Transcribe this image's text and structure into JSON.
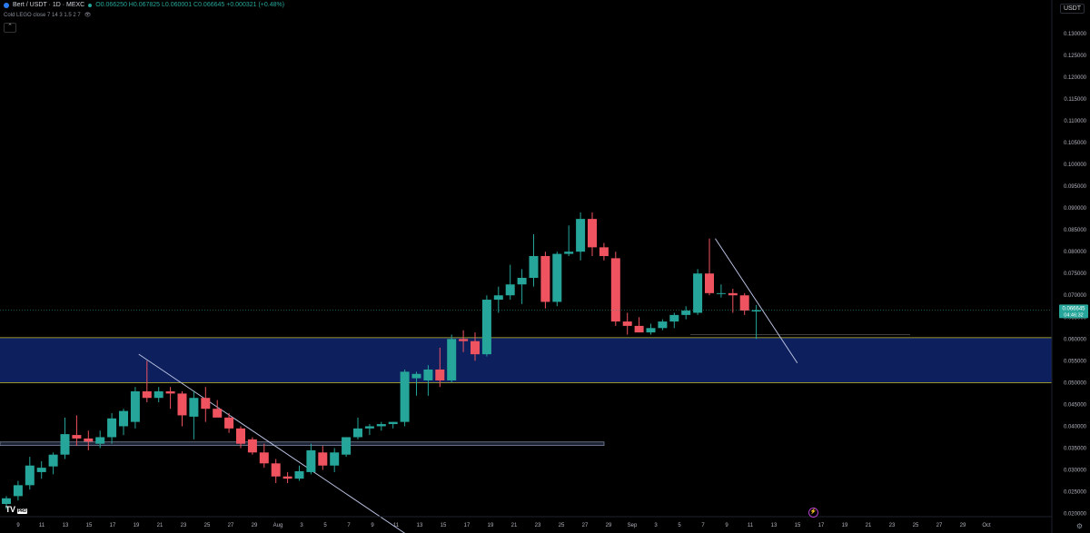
{
  "header": {
    "symbol": "Bert / USDT · 1D · MEXC",
    "ohlc": "O0.066250 H0.067825 L0.060001 C0.066645 +0.000321 (+0.48%)",
    "indicator": "Cold LEGO close 7 14 3 1.5 2 7",
    "collapse_icon": "chevron-up-icon",
    "visibility_icon": "eye-icon"
  },
  "quote_label": "USDT",
  "logo": {
    "text": "TV",
    "badge": "PRO"
  },
  "colors": {
    "up": "#26a69a",
    "down": "#ef5360",
    "zone_fill": "#0d1f5c",
    "zone_edge": "#c8c23a",
    "trendline": "#b8c0e0",
    "background": "#000000"
  },
  "chart_data": {
    "type": "candlestick",
    "symbol": "Bert / USDT",
    "interval": "1D",
    "exchange": "MEXC",
    "last_price": "0.066645",
    "countdown": "04:46:32",
    "y_axis": {
      "labels": [
        "0.130000",
        "0.125000",
        "0.120000",
        "0.115000",
        "0.110000",
        "0.105000",
        "0.100000",
        "0.095000",
        "0.090000",
        "0.085000",
        "0.080000",
        "0.075000",
        "0.070000",
        "0.065000",
        "0.060000",
        "0.055000",
        "0.050000",
        "0.045000",
        "0.040000",
        "0.035000",
        "0.030000",
        "0.025000",
        "0.020000"
      ],
      "range": [
        0.0195,
        0.1335
      ]
    },
    "x_axis": {
      "labels": [
        "9",
        "11",
        "13",
        "15",
        "17",
        "19",
        "21",
        "23",
        "25",
        "27",
        "29",
        "Aug",
        "3",
        "5",
        "7",
        "9",
        "11",
        "13",
        "15",
        "17",
        "19",
        "21",
        "23",
        "25",
        "27",
        "29",
        "Sep",
        "3",
        "5",
        "7",
        "9",
        "11",
        "13",
        "15",
        "17",
        "19",
        "21",
        "23",
        "25",
        "27",
        "29",
        "Oct"
      ]
    },
    "candles": [
      {
        "o": 0.0222,
        "h": 0.024,
        "l": 0.021,
        "c": 0.0235
      },
      {
        "o": 0.024,
        "h": 0.0275,
        "l": 0.023,
        "c": 0.0265
      },
      {
        "o": 0.0265,
        "h": 0.033,
        "l": 0.0255,
        "c": 0.031
      },
      {
        "o": 0.0295,
        "h": 0.032,
        "l": 0.028,
        "c": 0.0305
      },
      {
        "o": 0.0308,
        "h": 0.034,
        "l": 0.029,
        "c": 0.0335
      },
      {
        "o": 0.0335,
        "h": 0.042,
        "l": 0.0325,
        "c": 0.0382
      },
      {
        "o": 0.038,
        "h": 0.0425,
        "l": 0.0355,
        "c": 0.0372
      },
      {
        "o": 0.0372,
        "h": 0.039,
        "l": 0.0345,
        "c": 0.0365
      },
      {
        "o": 0.036,
        "h": 0.039,
        "l": 0.035,
        "c": 0.0375
      },
      {
        "o": 0.0375,
        "h": 0.043,
        "l": 0.036,
        "c": 0.0418
      },
      {
        "o": 0.04,
        "h": 0.044,
        "l": 0.038,
        "c": 0.0435
      },
      {
        "o": 0.041,
        "h": 0.049,
        "l": 0.0395,
        "c": 0.048
      },
      {
        "o": 0.048,
        "h": 0.055,
        "l": 0.0455,
        "c": 0.0465
      },
      {
        "o": 0.0465,
        "h": 0.049,
        "l": 0.0455,
        "c": 0.048
      },
      {
        "o": 0.048,
        "h": 0.049,
        "l": 0.044,
        "c": 0.0475
      },
      {
        "o": 0.0475,
        "h": 0.048,
        "l": 0.04,
        "c": 0.0425
      },
      {
        "o": 0.0422,
        "h": 0.048,
        "l": 0.037,
        "c": 0.0465
      },
      {
        "o": 0.0465,
        "h": 0.049,
        "l": 0.041,
        "c": 0.044
      },
      {
        "o": 0.044,
        "h": 0.046,
        "l": 0.0425,
        "c": 0.042
      },
      {
        "o": 0.042,
        "h": 0.043,
        "l": 0.0385,
        "c": 0.0395
      },
      {
        "o": 0.0395,
        "h": 0.04,
        "l": 0.035,
        "c": 0.036
      },
      {
        "o": 0.037,
        "h": 0.0375,
        "l": 0.0335,
        "c": 0.034
      },
      {
        "o": 0.034,
        "h": 0.036,
        "l": 0.0305,
        "c": 0.0315
      },
      {
        "o": 0.0315,
        "h": 0.0325,
        "l": 0.027,
        "c": 0.0285
      },
      {
        "o": 0.0285,
        "h": 0.0295,
        "l": 0.027,
        "c": 0.028
      },
      {
        "o": 0.028,
        "h": 0.031,
        "l": 0.0275,
        "c": 0.0297
      },
      {
        "o": 0.0295,
        "h": 0.036,
        "l": 0.029,
        "c": 0.0345
      },
      {
        "o": 0.034,
        "h": 0.0355,
        "l": 0.03,
        "c": 0.031
      },
      {
        "o": 0.031,
        "h": 0.035,
        "l": 0.0295,
        "c": 0.034
      },
      {
        "o": 0.0335,
        "h": 0.0375,
        "l": 0.033,
        "c": 0.0375
      },
      {
        "o": 0.0375,
        "h": 0.042,
        "l": 0.037,
        "c": 0.0395
      },
      {
        "o": 0.0395,
        "h": 0.0405,
        "l": 0.038,
        "c": 0.04
      },
      {
        "o": 0.04,
        "h": 0.041,
        "l": 0.039,
        "c": 0.0405
      },
      {
        "o": 0.0405,
        "h": 0.041,
        "l": 0.0395,
        "c": 0.041
      },
      {
        "o": 0.041,
        "h": 0.053,
        "l": 0.04,
        "c": 0.0525
      },
      {
        "o": 0.051,
        "h": 0.0525,
        "l": 0.047,
        "c": 0.052
      },
      {
        "o": 0.0505,
        "h": 0.054,
        "l": 0.047,
        "c": 0.053
      },
      {
        "o": 0.053,
        "h": 0.058,
        "l": 0.049,
        "c": 0.0505
      },
      {
        "o": 0.0505,
        "h": 0.061,
        "l": 0.05,
        "c": 0.06
      },
      {
        "o": 0.06,
        "h": 0.062,
        "l": 0.057,
        "c": 0.0595
      },
      {
        "o": 0.0595,
        "h": 0.0615,
        "l": 0.055,
        "c": 0.0565
      },
      {
        "o": 0.0565,
        "h": 0.07,
        "l": 0.056,
        "c": 0.069
      },
      {
        "o": 0.069,
        "h": 0.072,
        "l": 0.066,
        "c": 0.07
      },
      {
        "o": 0.07,
        "h": 0.077,
        "l": 0.069,
        "c": 0.0725
      },
      {
        "o": 0.0725,
        "h": 0.076,
        "l": 0.068,
        "c": 0.074
      },
      {
        "o": 0.074,
        "h": 0.084,
        "l": 0.072,
        "c": 0.079
      },
      {
        "o": 0.079,
        "h": 0.08,
        "l": 0.067,
        "c": 0.0685
      },
      {
        "o": 0.0685,
        "h": 0.08,
        "l": 0.0675,
        "c": 0.0795
      },
      {
        "o": 0.0795,
        "h": 0.086,
        "l": 0.079,
        "c": 0.08
      },
      {
        "o": 0.08,
        "h": 0.089,
        "l": 0.078,
        "c": 0.0875
      },
      {
        "o": 0.0875,
        "h": 0.089,
        "l": 0.079,
        "c": 0.081
      },
      {
        "o": 0.081,
        "h": 0.082,
        "l": 0.078,
        "c": 0.079
      },
      {
        "o": 0.0785,
        "h": 0.08,
        "l": 0.063,
        "c": 0.064
      },
      {
        "o": 0.064,
        "h": 0.066,
        "l": 0.061,
        "c": 0.063
      },
      {
        "o": 0.063,
        "h": 0.065,
        "l": 0.0615,
        "c": 0.0615
      },
      {
        "o": 0.0615,
        "h": 0.0635,
        "l": 0.061,
        "c": 0.0625
      },
      {
        "o": 0.0625,
        "h": 0.0645,
        "l": 0.062,
        "c": 0.064
      },
      {
        "o": 0.064,
        "h": 0.066,
        "l": 0.0625,
        "c": 0.0655
      },
      {
        "o": 0.0655,
        "h": 0.0675,
        "l": 0.0645,
        "c": 0.0665
      },
      {
        "o": 0.066,
        "h": 0.076,
        "l": 0.0655,
        "c": 0.075
      },
      {
        "o": 0.075,
        "h": 0.083,
        "l": 0.07,
        "c": 0.0705
      },
      {
        "o": 0.0705,
        "h": 0.0725,
        "l": 0.0695,
        "c": 0.0705
      },
      {
        "o": 0.0705,
        "h": 0.0715,
        "l": 0.066,
        "c": 0.07
      },
      {
        "o": 0.07,
        "h": 0.0705,
        "l": 0.0655,
        "c": 0.0665
      },
      {
        "o": 0.0663,
        "h": 0.0678,
        "l": 0.06,
        "c": 0.0666
      }
    ],
    "zones": [
      {
        "from": 0.05,
        "to": 0.0603
      },
      {
        "from": 0.0356,
        "to": 0.0364
      }
    ],
    "trendlines": [
      {
        "from": {
          "i": 11.3,
          "p": 0.0565
        },
        "to": {
          "i": 34.0,
          "p": 0.0155
        }
      },
      {
        "from": {
          "i": 60.5,
          "p": 0.083
        },
        "to": {
          "i": 67.5,
          "p": 0.0545
        }
      }
    ]
  }
}
